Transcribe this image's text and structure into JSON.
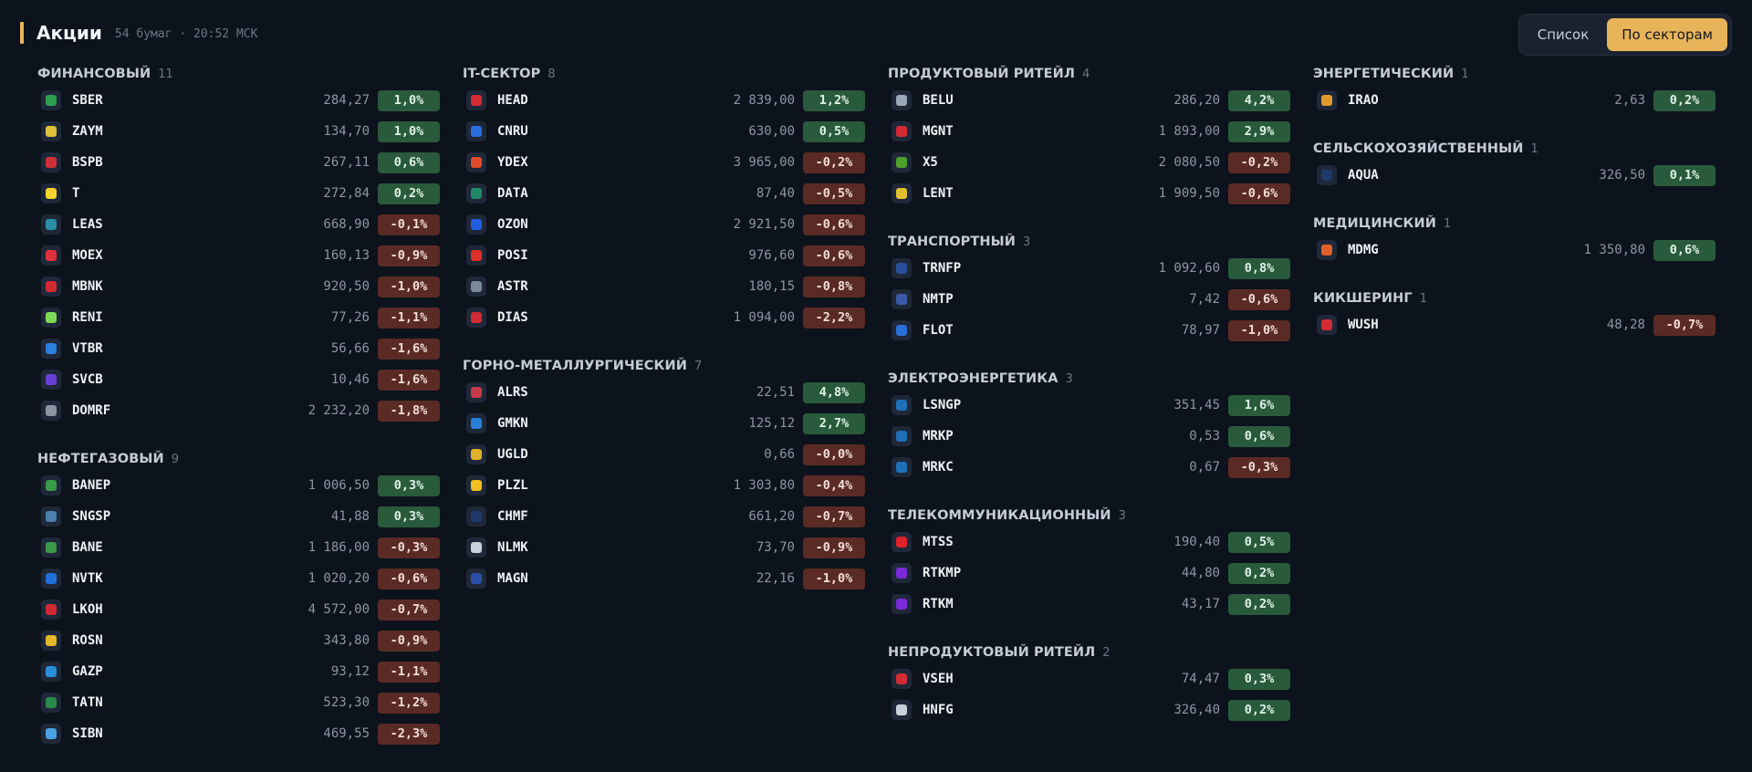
{
  "header": {
    "title": "Акции",
    "subtitle": "54 бумаг · 20:52 МСК"
  },
  "view_toggle": {
    "list_label": "Список",
    "sectors_label": "По секторам",
    "active": "По секторам"
  },
  "columns": [
    [
      {
        "name": "ФИНАНСОВЫЙ",
        "count": "11",
        "rows": [
          {
            "ticker": "SBER",
            "price": "284,27",
            "change": "1,0%",
            "dir": "up",
            "color": "#2e9e4f"
          },
          {
            "ticker": "ZAYM",
            "price": "134,70",
            "change": "1,0%",
            "dir": "up",
            "color": "#e0c23a"
          },
          {
            "ticker": "BSPB",
            "price": "267,11",
            "change": "0,6%",
            "dir": "up",
            "color": "#d0303a"
          },
          {
            "ticker": "T",
            "price": "272,84",
            "change": "0,2%",
            "dir": "up",
            "color": "#f6d52e"
          },
          {
            "ticker": "LEAS",
            "price": "668,90",
            "change": "-0,1%",
            "dir": "down",
            "color": "#2b8fa8"
          },
          {
            "ticker": "MOEX",
            "price": "160,13",
            "change": "-0,9%",
            "dir": "down",
            "color": "#e0323c"
          },
          {
            "ticker": "MBNK",
            "price": "920,50",
            "change": "-1,0%",
            "dir": "down",
            "color": "#d42a34"
          },
          {
            "ticker": "RENI",
            "price": "77,26",
            "change": "-1,1%",
            "dir": "down",
            "color": "#7ed957"
          },
          {
            "ticker": "VTBR",
            "price": "56,66",
            "change": "-1,6%",
            "dir": "down",
            "color": "#2a7fe0"
          },
          {
            "ticker": "SVCB",
            "price": "10,46",
            "change": "-1,6%",
            "dir": "down",
            "color": "#6a3fd6"
          },
          {
            "ticker": "DOMRF",
            "price": "2 232,20",
            "change": "-1,8%",
            "dir": "down",
            "color": "#8a94a3"
          }
        ]
      },
      {
        "name": "НЕФТЕГАЗОВЫЙ",
        "count": "9",
        "rows": [
          {
            "ticker": "BANEP",
            "price": "1 006,50",
            "change": "0,3%",
            "dir": "up",
            "color": "#3a9a4a"
          },
          {
            "ticker": "SNGSP",
            "price": "41,88",
            "change": "0,3%",
            "dir": "up",
            "color": "#4a7fae"
          },
          {
            "ticker": "BANE",
            "price": "1 186,00",
            "change": "-0,3%",
            "dir": "down",
            "color": "#3a9a4a"
          },
          {
            "ticker": "NVTK",
            "price": "1 020,20",
            "change": "-0,6%",
            "dir": "down",
            "color": "#1f6fd8"
          },
          {
            "ticker": "LKOH",
            "price": "4 572,00",
            "change": "-0,7%",
            "dir": "down",
            "color": "#d02a34"
          },
          {
            "ticker": "ROSN",
            "price": "343,80",
            "change": "-0,9%",
            "dir": "down",
            "color": "#e6b829"
          },
          {
            "ticker": "GAZP",
            "price": "93,12",
            "change": "-1,1%",
            "dir": "down",
            "color": "#2a8fd8"
          },
          {
            "ticker": "TATN",
            "price": "523,30",
            "change": "-1,2%",
            "dir": "down",
            "color": "#2a8a4a"
          },
          {
            "ticker": "SIBN",
            "price": "469,55",
            "change": "-2,3%",
            "dir": "down",
            "color": "#4aa0e0"
          }
        ]
      }
    ],
    [
      {
        "name": "IT-СЕКТОР",
        "count": "8",
        "rows": [
          {
            "ticker": "HEAD",
            "price": "2 839,00",
            "change": "1,2%",
            "dir": "up",
            "color": "#d42a34"
          },
          {
            "ticker": "CNRU",
            "price": "630,00",
            "change": "0,5%",
            "dir": "up",
            "color": "#2a6fe0"
          },
          {
            "ticker": "YDEX",
            "price": "3 965,00",
            "change": "-0,2%",
            "dir": "down",
            "color": "#e04a2a"
          },
          {
            "ticker": "DATA",
            "price": "87,40",
            "change": "-0,5%",
            "dir": "down",
            "color": "#1f8a6a"
          },
          {
            "ticker": "OZON",
            "price": "2 921,50",
            "change": "-0,6%",
            "dir": "down",
            "color": "#1f5fe0"
          },
          {
            "ticker": "POSI",
            "price": "976,60",
            "change": "-0,6%",
            "dir": "down",
            "color": "#e0302a"
          },
          {
            "ticker": "ASTR",
            "price": "180,15",
            "change": "-0,8%",
            "dir": "down",
            "color": "#7a8a9a"
          },
          {
            "ticker": "DIAS",
            "price": "1 094,00",
            "change": "-2,2%",
            "dir": "down",
            "color": "#d42a34"
          }
        ]
      },
      {
        "name": "ГОРНО-МЕТАЛЛУРГИЧЕСКИЙ",
        "count": "7",
        "rows": [
          {
            "ticker": "ALRS",
            "price": "22,51",
            "change": "4,8%",
            "dir": "up",
            "color": "#c83a4a"
          },
          {
            "ticker": "GMKN",
            "price": "125,12",
            "change": "2,7%",
            "dir": "up",
            "color": "#2a7fd8"
          },
          {
            "ticker": "UGLD",
            "price": "0,66",
            "change": "-0,0%",
            "dir": "down",
            "color": "#e0b02a"
          },
          {
            "ticker": "PLZL",
            "price": "1 303,80",
            "change": "-0,4%",
            "dir": "down",
            "color": "#f0c020"
          },
          {
            "ticker": "CHMF",
            "price": "661,20",
            "change": "-0,7%",
            "dir": "down",
            "color": "#1f3a6a"
          },
          {
            "ticker": "NLMK",
            "price": "73,70",
            "change": "-0,9%",
            "dir": "down",
            "color": "#c8d0dc"
          },
          {
            "ticker": "MAGN",
            "price": "22,16",
            "change": "-1,0%",
            "dir": "down",
            "color": "#2a4fa8"
          }
        ]
      }
    ],
    [
      {
        "name": "ПРОДУКТОВЫЙ РИТЕЙЛ",
        "count": "4",
        "rows": [
          {
            "ticker": "BELU",
            "price": "286,20",
            "change": "4,2%",
            "dir": "up",
            "color": "#9aa8b8"
          },
          {
            "ticker": "MGNT",
            "price": "1 893,00",
            "change": "2,9%",
            "dir": "up",
            "color": "#d42a34"
          },
          {
            "ticker": "X5",
            "price": "2 080,50",
            "change": "-0,2%",
            "dir": "down",
            "color": "#4aa02a"
          },
          {
            "ticker": "LENT",
            "price": "1 909,50",
            "change": "-0,6%",
            "dir": "down",
            "color": "#e0c02a"
          }
        ]
      },
      {
        "name": "ТРАНСПОРТНЫЙ",
        "count": "3",
        "rows": [
          {
            "ticker": "TRNFP",
            "price": "1 092,60",
            "change": "0,8%",
            "dir": "up",
            "color": "#2a4f9a"
          },
          {
            "ticker": "NMTP",
            "price": "7,42",
            "change": "-0,6%",
            "dir": "down",
            "color": "#3a5aa8"
          },
          {
            "ticker": "FLOT",
            "price": "78,97",
            "change": "-1,0%",
            "dir": "down",
            "color": "#2a6fd8"
          }
        ]
      },
      {
        "name": "ЭЛЕКТРОЭНЕРГЕТИКА",
        "count": "3",
        "rows": [
          {
            "ticker": "LSNGP",
            "price": "351,45",
            "change": "1,6%",
            "dir": "up",
            "color": "#1f6fb8"
          },
          {
            "ticker": "MRKP",
            "price": "0,53",
            "change": "0,6%",
            "dir": "up",
            "color": "#1f6fb8"
          },
          {
            "ticker": "MRKC",
            "price": "0,67",
            "change": "-0,3%",
            "dir": "down",
            "color": "#1f6fb8"
          }
        ]
      },
      {
        "name": "ТЕЛЕКОММУНИКАЦИОННЫЙ",
        "count": "3",
        "rows": [
          {
            "ticker": "MTSS",
            "price": "190,40",
            "change": "0,5%",
            "dir": "up",
            "color": "#e0202a"
          },
          {
            "ticker": "RTKMP",
            "price": "44,80",
            "change": "0,2%",
            "dir": "up",
            "color": "#7a2ad8"
          },
          {
            "ticker": "RTKM",
            "price": "43,17",
            "change": "0,2%",
            "dir": "up",
            "color": "#7a2ad8"
          }
        ]
      },
      {
        "name": "НЕПРОДУКТОВЫЙ РИТЕЙЛ",
        "count": "2",
        "rows": [
          {
            "ticker": "VSEH",
            "price": "74,47",
            "change": "0,3%",
            "dir": "up",
            "color": "#d42a34"
          },
          {
            "ticker": "HNFG",
            "price": "326,40",
            "change": "0,2%",
            "dir": "up",
            "color": "#c8d0dc"
          }
        ]
      }
    ],
    [
      {
        "name": "ЭНЕРГЕТИЧЕСКИЙ",
        "count": "1",
        "rows": [
          {
            "ticker": "IRAO",
            "price": "2,63",
            "change": "0,2%",
            "dir": "up",
            "color": "#e09a2a"
          }
        ]
      },
      {
        "name": "СЕЛЬСКОХОЗЯЙСТВЕННЫЙ",
        "count": "1",
        "rows": [
          {
            "ticker": "AQUA",
            "price": "326,50",
            "change": "0,1%",
            "dir": "up",
            "color": "#1f3a6a"
          }
        ]
      },
      {
        "name": "МЕДИЦИНСКИЙ",
        "count": "1",
        "rows": [
          {
            "ticker": "MDMG",
            "price": "1 350,80",
            "change": "0,6%",
            "dir": "up",
            "color": "#e0602a"
          }
        ]
      },
      {
        "name": "КИКШЕРИНГ",
        "count": "1",
        "rows": [
          {
            "ticker": "WUSH",
            "price": "48,28",
            "change": "-0,7%",
            "dir": "down",
            "color": "#d42a34"
          }
        ]
      }
    ]
  ]
}
